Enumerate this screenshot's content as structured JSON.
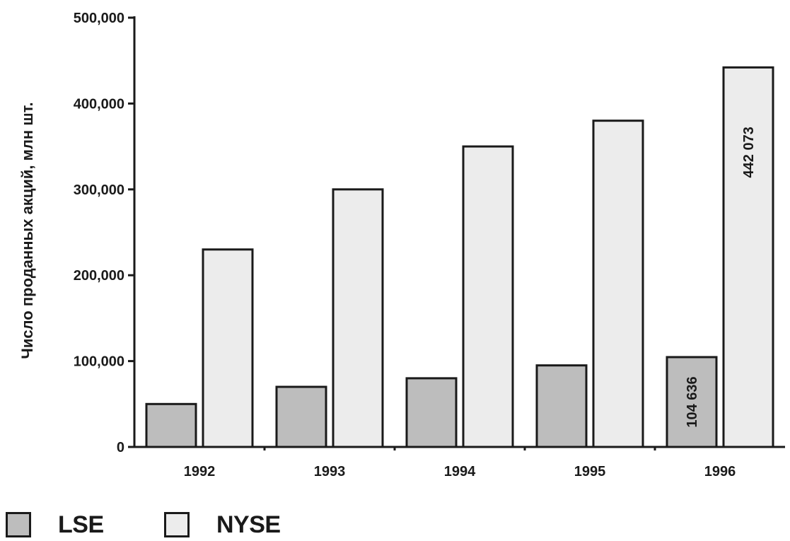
{
  "chart_data": {
    "type": "bar",
    "categories": [
      "1992",
      "1993",
      "1994",
      "1995",
      "1996"
    ],
    "series": [
      {
        "name": "LSE",
        "color": "#bdbdbd",
        "values": [
          50000,
          70000,
          80000,
          95000,
          104636
        ]
      },
      {
        "name": "NYSE",
        "color": "#ececec",
        "values": [
          230000,
          300000,
          350000,
          380000,
          442073
        ]
      }
    ],
    "ylabel": "Число проданных акций, млн шт.",
    "xlabel": "",
    "ylim": [
      0,
      500000
    ],
    "yticks": [
      "0",
      "100,000",
      "200,000",
      "300,000",
      "400,000",
      "500,000"
    ],
    "ytick_values": [
      0,
      100000,
      200000,
      300000,
      400000,
      500000
    ],
    "data_labels": [
      {
        "series": 0,
        "index": 4,
        "text": "104 636"
      },
      {
        "series": 1,
        "index": 4,
        "text": "442 073"
      }
    ],
    "legend_position": "bottom-left",
    "grid": false
  }
}
